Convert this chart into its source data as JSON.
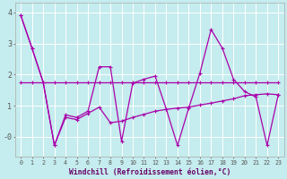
{
  "background_color": "#c5ecee",
  "grid_color": "#ffffff",
  "line_color": "#aa00aa",
  "xlim": [
    -0.5,
    23.5
  ],
  "ylim": [
    -0.65,
    4.3
  ],
  "yticks": [
    0,
    1,
    2,
    3,
    4
  ],
  "ytick_labels": [
    "-0",
    "1",
    "2",
    "3",
    "4"
  ],
  "xticks": [
    0,
    1,
    2,
    3,
    4,
    5,
    6,
    7,
    8,
    9,
    10,
    11,
    12,
    13,
    14,
    15,
    16,
    17,
    18,
    19,
    20,
    21,
    22,
    23
  ],
  "xlabel": "Windchill (Refroidissement éolien,°C)",
  "line_flat_x": [
    0,
    1,
    2,
    3,
    4,
    5,
    6,
    7,
    8,
    9,
    10,
    11,
    12,
    13,
    14,
    15,
    16,
    17,
    18,
    19,
    20,
    21,
    22,
    23
  ],
  "line_flat_y": [
    1.75,
    1.75,
    1.75,
    1.75,
    1.75,
    1.75,
    1.75,
    1.75,
    1.75,
    1.75,
    1.75,
    1.75,
    1.75,
    1.75,
    1.75,
    1.75,
    1.75,
    1.75,
    1.75,
    1.75,
    1.75,
    1.75,
    1.75,
    1.75
  ],
  "line_zigzag_x": [
    0,
    1,
    2,
    3,
    4,
    5,
    6,
    7,
    8,
    9,
    10,
    11,
    12,
    13,
    14,
    15,
    16,
    17,
    18,
    19,
    20,
    21,
    22,
    23
  ],
  "line_zigzag_y": [
    3.9,
    2.85,
    1.75,
    -0.28,
    0.7,
    0.62,
    0.82,
    2.25,
    2.25,
    -0.15,
    1.72,
    1.85,
    1.95,
    0.88,
    -0.28,
    0.92,
    2.05,
    3.45,
    2.85,
    1.85,
    1.45,
    1.28,
    -0.28,
    1.35
  ],
  "line_trend_x": [
    0,
    1,
    2,
    3,
    4,
    5,
    6,
    7,
    8,
    9,
    10,
    11,
    12,
    13,
    14,
    15,
    16,
    17,
    18,
    19,
    20,
    21,
    22,
    23
  ],
  "line_trend_y": [
    3.9,
    2.85,
    1.75,
    -0.28,
    0.62,
    0.55,
    0.75,
    0.95,
    0.45,
    0.5,
    0.62,
    0.72,
    0.82,
    0.88,
    0.92,
    0.95,
    1.02,
    1.08,
    1.15,
    1.22,
    1.32,
    1.35,
    1.38,
    1.35
  ]
}
